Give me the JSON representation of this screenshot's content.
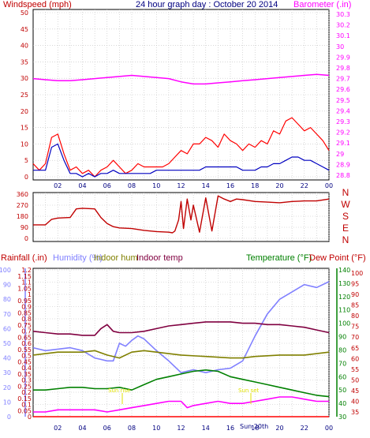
{
  "chart_data": [
    {
      "type": "line",
      "panel": "wind-barometer",
      "title": "24 hour graph day : October 20 2014",
      "left_axis_label": "Windspeed (mph)",
      "right_axis_label": "Barometer (.in)",
      "left_ticks": [
        "0",
        "5",
        "10",
        "15",
        "20",
        "25",
        "30",
        "35",
        "40",
        "45",
        "50"
      ],
      "right_ticks": [
        "28.8",
        "28.9",
        "29",
        "29.1",
        "29.2",
        "29.3",
        "29.4",
        "29.5",
        "29.6",
        "29.7",
        "29.8",
        "29.9",
        "30",
        "30.1",
        "30.2",
        "30.3"
      ],
      "hours": [
        "02",
        "04",
        "06",
        "08",
        "10",
        "12",
        "14",
        "16",
        "18",
        "20",
        "22",
        "00"
      ],
      "series": [
        {
          "color": "#ff0000",
          "axis": "left",
          "x": [
            0,
            0.5,
            1,
            1.5,
            2,
            2.5,
            3,
            3.5,
            4,
            4.5,
            5,
            5.5,
            6,
            6.5,
            7,
            7.5,
            8,
            8.5,
            9,
            9.5,
            10,
            10.5,
            11,
            11.5,
            12,
            12.5,
            13,
            13.5,
            14,
            14.5,
            15,
            15.5,
            16,
            16.5,
            17,
            17.5,
            18,
            18.5,
            19,
            19.5,
            20,
            20.5,
            21,
            21.5,
            22,
            22.5,
            23,
            23.5,
            24
          ],
          "values": [
            4,
            2,
            4,
            12,
            13,
            7,
            2,
            3,
            1,
            2,
            0,
            2,
            3,
            5,
            3,
            1,
            2,
            4,
            3,
            3,
            3,
            3,
            4,
            6,
            8,
            7,
            10,
            10,
            12,
            11,
            9,
            13,
            11,
            10,
            8,
            10,
            9,
            11,
            10,
            14,
            13,
            17,
            18,
            16,
            14,
            15,
            13,
            11,
            8
          ]
        },
        {
          "color": "#0000c0",
          "axis": "left",
          "x": [
            0,
            0.5,
            1,
            1.5,
            2,
            2.5,
            3,
            3.5,
            4,
            4.5,
            5,
            5.5,
            6,
            6.5,
            7,
            7.5,
            8,
            8.5,
            9,
            9.5,
            10,
            10.5,
            11,
            11.5,
            12,
            12.5,
            13,
            13.5,
            14,
            14.5,
            15,
            15.5,
            16,
            16.5,
            17,
            17.5,
            18,
            18.5,
            19,
            19.5,
            20,
            20.5,
            21,
            21.5,
            22,
            22.5,
            23,
            23.5,
            24
          ],
          "values": [
            2,
            2,
            2,
            9,
            10,
            5,
            1,
            1,
            0,
            1,
            0,
            1,
            1,
            2,
            1,
            1,
            1,
            1,
            1,
            1,
            2,
            2,
            2,
            2,
            2,
            2,
            2,
            2,
            3,
            3,
            3,
            3,
            3,
            3,
            2,
            2,
            2,
            3,
            3,
            4,
            4,
            5,
            6,
            6,
            5,
            5,
            4,
            3,
            2
          ]
        },
        {
          "color": "#ff00ff",
          "axis": "right",
          "x": [
            0,
            1,
            2,
            3,
            4,
            5,
            6,
            7,
            8,
            9,
            10,
            11,
            12,
            13,
            14,
            15,
            16,
            17,
            18,
            19,
            20,
            21,
            22,
            23,
            24
          ],
          "values": [
            29.7,
            29.69,
            29.68,
            29.68,
            29.69,
            29.7,
            29.71,
            29.72,
            29.73,
            29.72,
            29.71,
            29.7,
            29.67,
            29.65,
            29.65,
            29.66,
            29.67,
            29.68,
            29.69,
            29.7,
            29.71,
            29.72,
            29.73,
            29.74,
            29.73
          ]
        }
      ]
    },
    {
      "type": "line",
      "panel": "wind-direction",
      "left_ticks": [
        "0",
        "90",
        "180",
        "270",
        "360"
      ],
      "compass": [
        "N",
        "W",
        "S",
        "E",
        "N"
      ],
      "series": [
        {
          "color": "#c00000",
          "x": [
            0,
            1,
            1.5,
            2,
            3,
            3.5,
            4,
            5,
            5.5,
            6,
            6.5,
            7,
            8,
            9,
            10,
            11,
            11.3,
            11.5,
            11.8,
            12,
            12.2,
            12.5,
            12.8,
            13,
            13.5,
            14,
            14.5,
            15,
            15.5,
            16,
            16.5,
            17,
            18,
            19,
            20,
            21,
            22,
            23,
            24
          ],
          "values": [
            110,
            110,
            155,
            165,
            170,
            240,
            245,
            240,
            170,
            120,
            95,
            85,
            80,
            65,
            55,
            50,
            45,
            60,
            150,
            300,
            80,
            320,
            150,
            270,
            50,
            330,
            60,
            345,
            320,
            300,
            320,
            315,
            300,
            295,
            290,
            300,
            305,
            305,
            320
          ]
        }
      ]
    },
    {
      "type": "line",
      "panel": "temperature-humidity",
      "legend": {
        "rainfall": "Rainfall (.in)",
        "humidity": "Humidity (%)",
        "indoor_hum": "Indoor hum",
        "indoor_temp": "Indoor temp",
        "temperature": "Temperature (°F)",
        "dew_point": "Dew Point (°F)"
      },
      "rain_ticks": [
        "0",
        "0.05",
        "0.1",
        "0.15",
        "0.2",
        "0.25",
        "0.3",
        "0.35",
        "0.4",
        "0.45",
        "0.5",
        "0.55",
        "0.6",
        "0.65",
        "0.7",
        "0.75",
        "0.8",
        "0.85",
        "0.9",
        "0.95",
        "1",
        "1.05",
        "1.1",
        "1.15",
        "1.2"
      ],
      "humidity_ticks": [
        "0",
        "10",
        "20",
        "30",
        "40",
        "50",
        "60",
        "70",
        "80",
        "90",
        "100"
      ],
      "temp_ticks": [
        "30",
        "40",
        "50",
        "60",
        "70",
        "80",
        "90",
        "100",
        "110",
        "120",
        "130",
        "140"
      ],
      "dew_ticks": [
        "35",
        "40",
        "45",
        "50",
        "55",
        "60",
        "65",
        "70",
        "75",
        "80",
        "85",
        "90",
        "95",
        "100"
      ],
      "annotations": [
        "Sun rise",
        "Sun set"
      ],
      "bottom_day_label": "Sun 20th",
      "series": [
        {
          "name": "Humidity (%)",
          "color": "#8080ff",
          "axis": "humidity",
          "x": [
            0,
            1,
            2,
            3,
            4,
            5,
            6,
            6.5,
            7,
            7.5,
            8,
            8.5,
            9,
            10,
            11,
            12,
            13,
            14,
            15,
            16,
            17,
            18,
            19,
            20,
            21,
            22,
            23,
            24
          ],
          "values": [
            47,
            45,
            46,
            47,
            45,
            40,
            38,
            38,
            50,
            48,
            52,
            55,
            53,
            45,
            38,
            30,
            32,
            30,
            32,
            33,
            38,
            55,
            70,
            80,
            85,
            90,
            88,
            92
          ]
        },
        {
          "name": "Indoor hum",
          "color": "#808000",
          "axis": "humidity",
          "x": [
            0,
            2,
            4,
            5,
            6,
            7,
            8,
            9,
            10,
            12,
            14,
            16,
            17,
            18,
            20,
            22,
            24
          ],
          "values": [
            42,
            44,
            44,
            45,
            42,
            40,
            44,
            45,
            44,
            42,
            41,
            40,
            40,
            41,
            42,
            42,
            44
          ]
        },
        {
          "name": "Indoor temp",
          "color": "#800040",
          "axis": "temperature",
          "x": [
            0,
            1,
            2,
            3,
            4,
            5,
            5.5,
            6,
            6.5,
            7,
            8,
            9,
            10,
            11,
            12,
            13,
            14,
            15,
            16,
            17,
            18,
            19,
            20,
            21,
            22,
            23,
            24
          ],
          "values": [
            94,
            93,
            92,
            92,
            91,
            91,
            96,
            99,
            94,
            93,
            93,
            94,
            96,
            98,
            99,
            100,
            101,
            101,
            101,
            100,
            100,
            99,
            99,
            98,
            97,
            95,
            93
          ]
        },
        {
          "name": "Temperature (°F)",
          "color": "#008000",
          "axis": "temperature",
          "x": [
            0,
            1,
            2,
            3,
            4,
            5,
            6,
            7,
            8,
            9,
            10,
            11,
            12,
            13,
            14,
            15,
            16,
            17,
            18,
            19,
            20,
            21,
            22,
            23,
            24
          ],
          "values": [
            50,
            50,
            51,
            52,
            52,
            51,
            51,
            52,
            50,
            54,
            58,
            60,
            62,
            64,
            65,
            64,
            60,
            58,
            56,
            54,
            52,
            50,
            48,
            46,
            45
          ]
        },
        {
          "name": "Dew Point (°F)",
          "color": "#ff00ff",
          "axis": "dew",
          "x": [
            0,
            1,
            2,
            3,
            4,
            5,
            6,
            7,
            8,
            9,
            10,
            11,
            12,
            12.5,
            13,
            14,
            15,
            16,
            17,
            18,
            19,
            20,
            21,
            22,
            23,
            24
          ],
          "values": [
            35,
            35,
            36,
            36,
            36,
            36,
            35,
            36,
            37,
            38,
            39,
            40,
            40,
            37,
            38,
            39,
            40,
            39,
            39,
            40,
            41,
            42,
            42,
            41,
            40,
            40
          ]
        },
        {
          "name": "Rainfall (.in)",
          "color": "#ff0000",
          "axis": "rain",
          "x": [
            0,
            24
          ],
          "values": [
            0,
            0
          ]
        }
      ]
    }
  ]
}
